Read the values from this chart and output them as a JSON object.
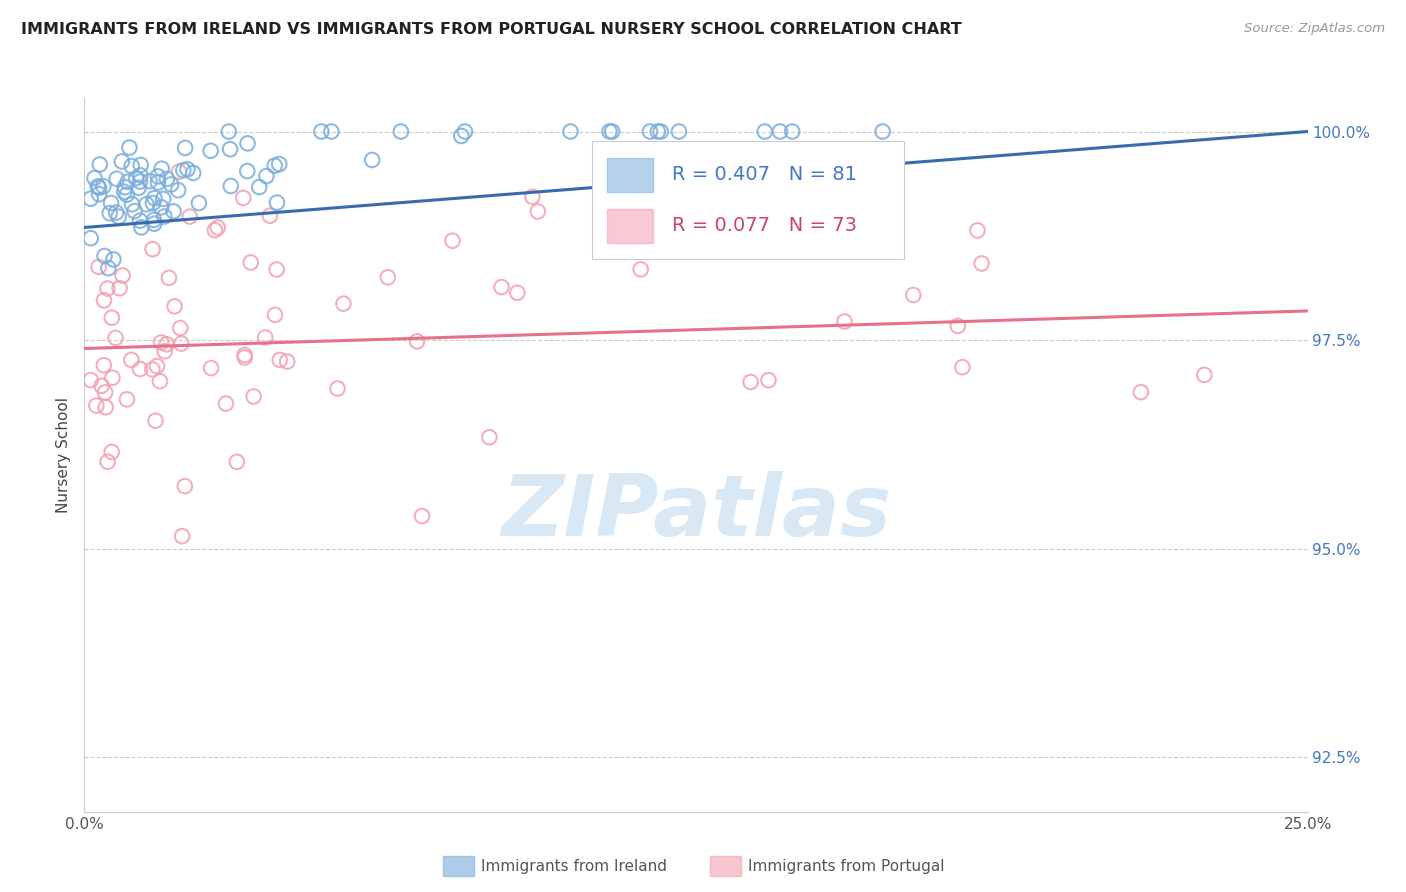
{
  "title": "IMMIGRANTS FROM IRELAND VS IMMIGRANTS FROM PORTUGAL NURSERY SCHOOL CORRELATION CHART",
  "source": "Source: ZipAtlas.com",
  "ylabel": "Nursery School",
  "xmin": 0.0,
  "xmax": 0.25,
  "ymin": 0.9185,
  "ymax": 1.004,
  "yticks": [
    0.925,
    0.95,
    0.975,
    1.0
  ],
  "yticklabels": [
    "92.5%",
    "95.0%",
    "97.5%",
    "100.0%"
  ],
  "xticks": [
    0.0,
    0.05,
    0.1,
    0.15,
    0.2,
    0.25
  ],
  "xticklabels": [
    "0.0%",
    "",
    "",
    "",
    "",
    "25.0%"
  ],
  "ireland_scatter_color": "#7AADDC",
  "portugal_scatter_color": "#F4A0B0",
  "ireland_line_color": "#3A6BAF",
  "portugal_line_color": "#E8708A",
  "legend_text_ireland_color": "#4477CC",
  "legend_text_portugal_color": "#CC4466",
  "ytick_color": "#4477BB",
  "xtick_color": "#555555",
  "grid_color": "#CCCCCC",
  "watermark_color": "#D8E8F5",
  "bottom_legend_ireland": "Immigrants from Ireland",
  "bottom_legend_portugal": "Immigrants from Portugal"
}
